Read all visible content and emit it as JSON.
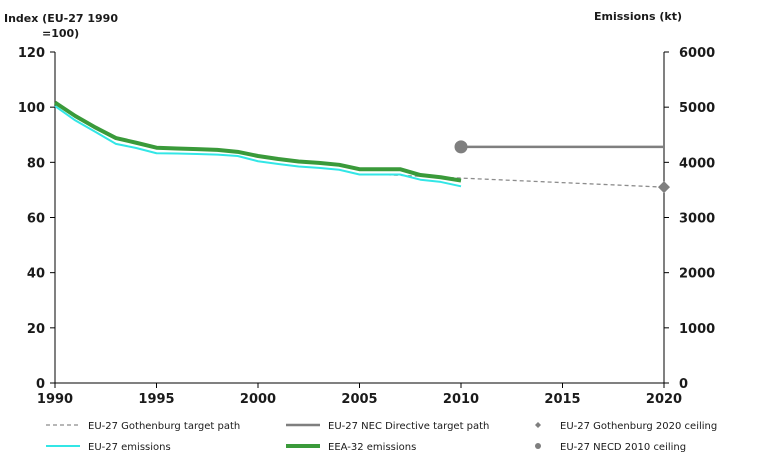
{
  "chart_data": {
    "type": "line",
    "title": "",
    "y_left_title_lines": [
      "Index (EU-27 1990",
      "=100)"
    ],
    "y_right_title": "Emissions (kt)",
    "x": {
      "range": [
        1990,
        2020
      ],
      "ticks": [
        1990,
        1995,
        2000,
        2005,
        2010,
        2015,
        2020
      ],
      "labels": [
        "1990",
        "1995",
        "2000",
        "2005",
        "2010",
        "2015",
        "2020"
      ]
    },
    "y_left": {
      "range": [
        0,
        120
      ],
      "ticks": [
        0,
        20,
        40,
        60,
        80,
        100,
        120
      ],
      "labels": [
        "0",
        "20",
        "40",
        "60",
        "80",
        "100",
        "120"
      ]
    },
    "y_right": {
      "range": [
        0,
        6000
      ],
      "ticks": [
        0,
        1000,
        2000,
        3000,
        4000,
        5000,
        6000
      ],
      "labels": [
        "0",
        "1000",
        "2000",
        "3000",
        "4000",
        "5000",
        "6000"
      ]
    },
    "grid": false,
    "legend_position": "bottom",
    "series": [
      {
        "id": "gothenburg-path",
        "name": "EU-27 Gothenburg target path",
        "axis": "left",
        "style": "dashed",
        "color": "#8c8c8c",
        "points": [
          [
            2006,
            75.6
          ],
          [
            2020,
            71
          ]
        ]
      },
      {
        "id": "nec-path",
        "name": "EU-27 NEC Directive target path",
        "axis": "left",
        "style": "solid",
        "color": "#7f7f7f",
        "points": [
          [
            2010,
            85.6
          ],
          [
            2020,
            85.6
          ]
        ]
      },
      {
        "id": "gothenburg-2020-ceiling",
        "name": "EU-27 Gothenburg 2020 ceiling",
        "axis": "left",
        "style": "diamond-marker",
        "color": "#7f7f7f",
        "points": [
          [
            2020,
            71
          ]
        ]
      },
      {
        "id": "eu27-emissions",
        "name": "EU-27 emissions",
        "axis": "left",
        "style": "solid",
        "color": "#33e6e6",
        "points": [
          [
            1990,
            100.4
          ],
          [
            1991,
            95.2
          ],
          [
            1992,
            91
          ],
          [
            1993,
            86.7
          ],
          [
            1994,
            85.2
          ],
          [
            1995,
            83.3
          ],
          [
            1996,
            83.2
          ],
          [
            1997,
            83
          ],
          [
            1998,
            82.8
          ],
          [
            1999,
            82.3
          ],
          [
            2000,
            80.4
          ],
          [
            2001,
            79.4
          ],
          [
            2002,
            78.5
          ],
          [
            2003,
            78
          ],
          [
            2004,
            77.3
          ],
          [
            2005,
            75.6
          ],
          [
            2006,
            75.6
          ],
          [
            2007,
            75.6
          ],
          [
            2008,
            73.7
          ],
          [
            2009,
            72.9
          ],
          [
            2010,
            71.3
          ]
        ]
      },
      {
        "id": "eea32-emissions",
        "name": "EEA-32 emissions",
        "axis": "left",
        "style": "solid-thick",
        "color": "#3a9a3a",
        "points": [
          [
            1990,
            101.7
          ],
          [
            1991,
            96.8
          ],
          [
            1992,
            92.6
          ],
          [
            1993,
            88.8
          ],
          [
            1994,
            87.1
          ],
          [
            1995,
            85.3
          ],
          [
            1996,
            85
          ],
          [
            1997,
            84.8
          ],
          [
            1998,
            84.5
          ],
          [
            1999,
            83.8
          ],
          [
            2000,
            82.3
          ],
          [
            2001,
            81.2
          ],
          [
            2002,
            80.3
          ],
          [
            2003,
            79.8
          ],
          [
            2004,
            79.1
          ],
          [
            2005,
            77.5
          ],
          [
            2006,
            77.5
          ],
          [
            2007,
            77.5
          ],
          [
            2008,
            75.4
          ],
          [
            2009,
            74.6
          ],
          [
            2010,
            73.4
          ]
        ]
      },
      {
        "id": "necd-2010-ceiling",
        "name": "EU-27 NECD 2010 ceiling",
        "axis": "left",
        "style": "circle-marker",
        "color": "#7f7f7f",
        "points": [
          [
            2010,
            85.6
          ]
        ]
      }
    ],
    "legend": [
      {
        "series": "gothenburg-path",
        "label": "EU-27 Gothenburg target path",
        "symbol": "dashed-line"
      },
      {
        "series": "nec-path",
        "label": "EU-27 NEC Directive target path",
        "symbol": "solid-line"
      },
      {
        "series": "gothenburg-2020-ceiling",
        "label": "EU-27 Gothenburg 2020 ceiling",
        "symbol": "diamond"
      },
      {
        "series": "eu27-emissions",
        "label": "EU-27 emissions",
        "symbol": "cyan-line"
      },
      {
        "series": "eea32-emissions",
        "label": "EEA-32 emissions",
        "symbol": "thick-line"
      },
      {
        "series": "necd-2010-ceiling",
        "label": "EU-27 NECD 2010 ceiling",
        "symbol": "circle"
      }
    ]
  }
}
